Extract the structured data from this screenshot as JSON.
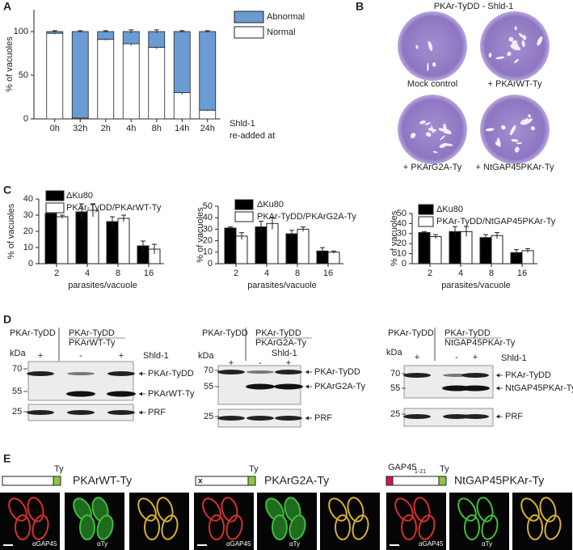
{
  "panels": {
    "a": "A",
    "b": "B",
    "c": "C",
    "d": "D",
    "e": "E"
  },
  "chart_data": [
    {
      "type": "stacked_bar",
      "ylabel": "% of vacuoles",
      "x_annotation": [
        "Shld-1",
        "re-added at"
      ],
      "categories": [
        "0h",
        "32h",
        "2h",
        "4h",
        "8h",
        "14h",
        "24h"
      ],
      "series": [
        {
          "name": "Normal",
          "color": "#ffffff",
          "values": [
            98,
            1,
            91,
            86,
            82,
            30,
            10
          ],
          "errors": [
            1,
            1,
            1,
            2,
            2,
            2,
            1
          ]
        },
        {
          "name": "Abnormal",
          "color": "#6b9bd3",
          "values": [
            2,
            99,
            9,
            14,
            18,
            70,
            90
          ],
          "errors": [
            1,
            1,
            1,
            2,
            2,
            1,
            1
          ]
        }
      ],
      "ylim": [
        0,
        125
      ],
      "yticks": [
        0,
        50,
        100
      ]
    },
    {
      "type": "bar",
      "ylabel": "% of vacuoles",
      "xlabel": "parasites/vacuole",
      "categories": [
        "2",
        "4",
        "8",
        "16"
      ],
      "series": [
        {
          "name": "ΔKu80",
          "color": "#000000",
          "values": [
            31,
            32,
            26,
            11
          ],
          "errors": [
            1,
            5,
            3,
            3
          ]
        },
        {
          "name": "PKAr-TyDD/PKArWT-Ty",
          "color": "#ffffff",
          "values": [
            29,
            33,
            28,
            9
          ],
          "errors": [
            1,
            4,
            2,
            3
          ]
        }
      ],
      "ylim": [
        0,
        40
      ],
      "yticks": [
        0,
        10,
        20,
        30,
        40
      ]
    },
    {
      "type": "bar",
      "ylabel": "% of vacuoles",
      "xlabel": "parasites/vacuole",
      "categories": [
        "2",
        "4",
        "8",
        "16"
      ],
      "series": [
        {
          "name": "ΔKu80",
          "color": "#000000",
          "values": [
            31,
            32,
            26,
            11
          ],
          "errors": [
            1,
            5,
            3,
            3
          ]
        },
        {
          "name": "PKAr-TyDD/PKArG2A-Ty",
          "color": "#ffffff",
          "values": [
            24,
            35,
            30,
            10
          ],
          "errors": [
            3,
            5,
            2,
            1
          ]
        }
      ],
      "ylim": [
        0,
        50
      ],
      "yticks": [
        0,
        10,
        20,
        30,
        40,
        50
      ]
    },
    {
      "type": "bar",
      "ylabel": "% of vacuoles",
      "xlabel": "parasites/vacuole",
      "categories": [
        "2",
        "4",
        "8",
        "16"
      ],
      "series": [
        {
          "name": "ΔKu80",
          "color": "#000000",
          "values": [
            31,
            32,
            26,
            11
          ],
          "errors": [
            1,
            5,
            3,
            3
          ]
        },
        {
          "name": "PKAr-TyDD/NtGAP45PKAr-Ty",
          "color": "#ffffff",
          "values": [
            27,
            32,
            28,
            13
          ],
          "errors": [
            2,
            5,
            3,
            2
          ]
        }
      ],
      "ylim": [
        0,
        50
      ],
      "yticks": [
        0,
        10,
        20,
        30,
        40,
        50
      ]
    }
  ],
  "plaque_assay": {
    "title": "PKAr-TyDD - Shld-1",
    "labels": [
      "Mock control",
      "+ PKArWT-Ty",
      "+ PKArG2A-Ty",
      "+ NtGAP45PKAr-Ty"
    ]
  },
  "western_blots": [
    {
      "lane_groups": [
        [
          "PKAr-TyDD"
        ],
        [
          "PKAr-TyDD",
          "PKArWT-Ty"
        ]
      ],
      "kda_label": "kDa",
      "lanes": [
        "+",
        "-",
        "+"
      ],
      "treatment": "Shld-1",
      "markers": [
        "70",
        "55",
        "25"
      ],
      "bands": [
        "PKAr-TyDD",
        "PKArWT-Ty",
        "PRF"
      ]
    },
    {
      "lane_groups": [
        [
          "PKAr-TyDD"
        ],
        [
          "PKAr-TyDD",
          "PKArG2A-Ty"
        ]
      ],
      "kda_label": "kDa",
      "lanes": [
        "+",
        "-",
        "+"
      ],
      "treatment": "Shld-1",
      "markers": [
        "70",
        "55",
        "25"
      ],
      "bands": [
        "PKAr-TyDD",
        "PKArG2A-Ty",
        "PRF"
      ]
    },
    {
      "lane_groups": [
        [
          "PKAr-TyDD"
        ],
        [
          "PKAr-TyDD",
          "NtGAP45PKAr-Ty"
        ]
      ],
      "kda_label": "kDa",
      "lanes": [
        "+",
        "-",
        "+"
      ],
      "treatment": "Shld-1",
      "markers": [
        "70",
        "55",
        "25"
      ],
      "bands": [
        "PKAr-TyDD",
        "NtGAP45PKAr-Ty",
        "PRF"
      ]
    }
  ],
  "localization": [
    {
      "tag": "Ty",
      "construct": "PKArWT-Ty",
      "stains": [
        "αGAP45",
        "αTy"
      ]
    },
    {
      "mutation": "x",
      "tag": "Ty",
      "construct": "PKArG2A-Ty",
      "stains": [
        "αGAP45",
        "αTy"
      ]
    },
    {
      "domain": "GAP45",
      "domain_subscript": "1-21",
      "tag": "Ty",
      "construct": "NtGAP45PKAr-Ty",
      "stains": [
        "αGAP45",
        "αTy"
      ]
    }
  ]
}
